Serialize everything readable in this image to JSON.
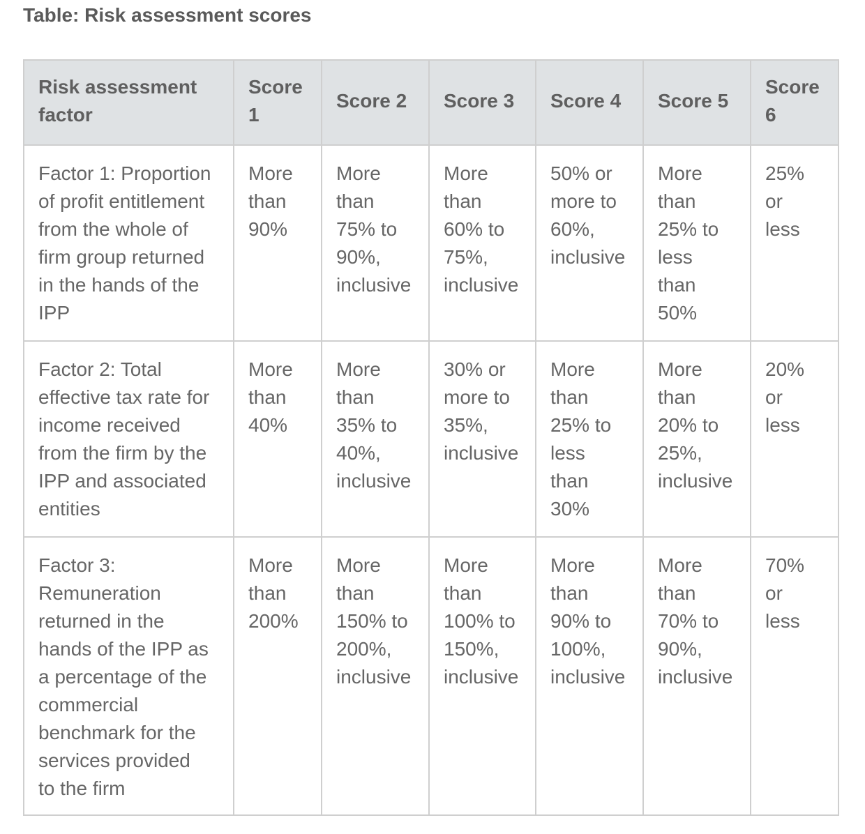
{
  "title": "Table: Risk assessment scores",
  "table": {
    "headers": [
      "Risk assessment\nfactor",
      "Score\n1",
      "Score 2",
      "Score 3",
      "Score 4",
      "Score 5",
      "Score\n6"
    ],
    "rows": [
      [
        "Factor 1: Proportion\nof profit entitlement\nfrom the whole of\nfirm group returned\nin the hands of the\nIPP",
        "More\nthan\n90%",
        "More\nthan\n75% to\n90%,\ninclusive",
        "More\nthan\n60% to\n75%,\ninclusive",
        "50% or\nmore to\n60%,\ninclusive",
        "More\nthan\n25% to\nless\nthan\n50%",
        "25%\nor\nless"
      ],
      [
        "Factor 2: Total\neffective tax rate for\nincome received\nfrom the firm by the\nIPP and associated\nentities",
        "More\nthan\n40%",
        "More\nthan\n35% to\n40%,\ninclusive",
        "30% or\nmore to\n35%,\ninclusive",
        "More\nthan\n25% to\nless\nthan\n30%",
        "More\nthan\n20% to\n25%,\ninclusive",
        "20%\nor\nless"
      ],
      [
        "Factor 3:\nRemuneration\nreturned in the\nhands of the IPP as\na percentage of the\ncommercial\nbenchmark for the\nservices provided\nto the firm",
        "More\nthan\n200%",
        "More\nthan\n150% to\n200%,\ninclusive",
        "More\nthan\n100% to\n150%,\ninclusive",
        "More\nthan\n90% to\n100%,\ninclusive",
        "More\nthan\n70% to\n90%,\ninclusive",
        "70%\nor\nless"
      ]
    ]
  }
}
